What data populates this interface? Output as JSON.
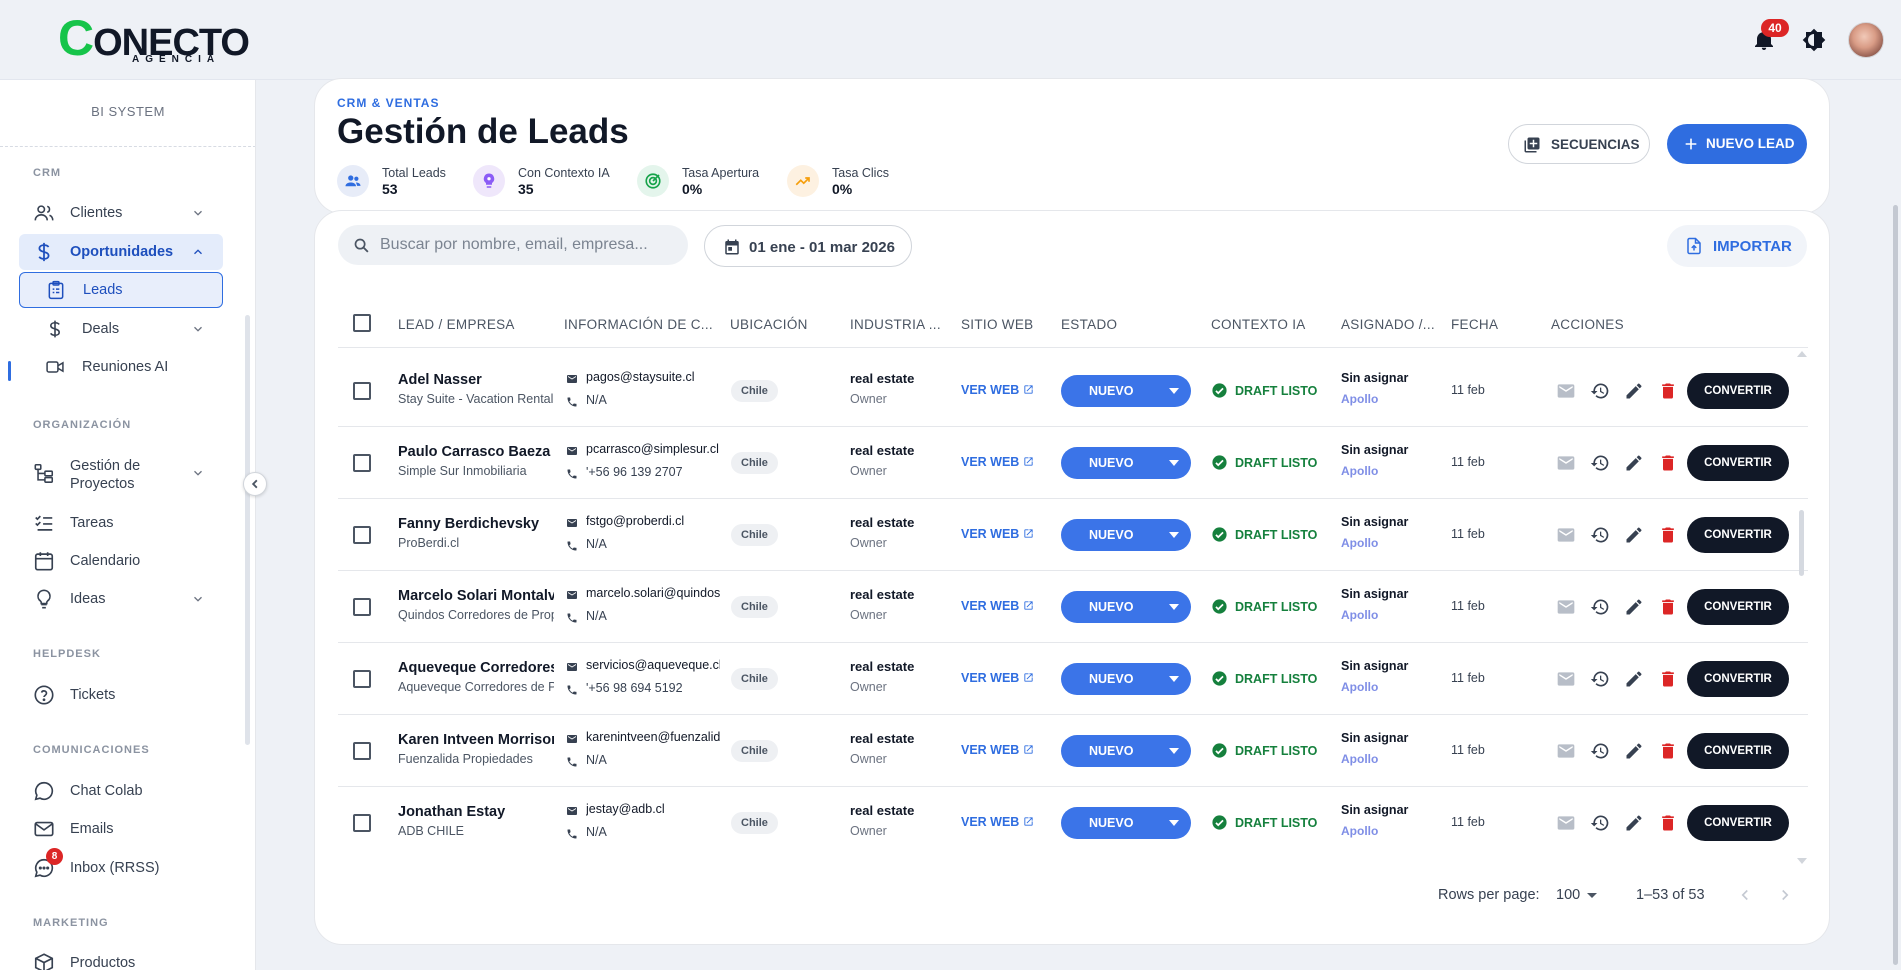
{
  "brand": {
    "logo_letter": "C",
    "logo_text": "ONECTO",
    "logo_sub": "AGENCIA"
  },
  "header": {
    "notifications": "40"
  },
  "sidebar": {
    "title": "BI SYSTEM",
    "sections": {
      "crm": "CRM",
      "org": "ORGANIZACIÓN",
      "helpdesk": "HELPDESK",
      "comms": "COMUNICACIONES",
      "marketing": "MARKETING"
    },
    "items": {
      "clientes": "Clientes",
      "oportunidades": "Oportunidades",
      "leads": "Leads",
      "deals": "Deals",
      "reuniones": "Reuniones AI",
      "proyectos_1": "Gestión de",
      "proyectos_2": "Proyectos",
      "tareas": "Tareas",
      "calendario": "Calendario",
      "ideas": "Ideas",
      "tickets": "Tickets",
      "chat": "Chat Colab",
      "emails": "Emails",
      "inbox": "Inbox (RRSS)",
      "productos": "Productos"
    },
    "inbox_badge": "8"
  },
  "page": {
    "crumb": "CRM & VENTAS",
    "title": "Gestión de Leads",
    "stats": [
      {
        "label": "Total Leads",
        "value": "53"
      },
      {
        "label": "Con Contexto IA",
        "value": "35"
      },
      {
        "label": "Tasa Apertura",
        "value": "0%"
      },
      {
        "label": "Tasa Clics",
        "value": "0%"
      }
    ],
    "btn_sequences": "SECUENCIAS",
    "btn_new": "NUEVO LEAD",
    "btn_import": "IMPORTAR",
    "search_placeholder": "Buscar por nombre, email, empresa...",
    "date_range": "01 ene - 01 mar 2026"
  },
  "table": {
    "columns": [
      "LEAD / EMPRESA",
      "INFORMACIÓN DE C...",
      "UBICACIÓN",
      "INDUSTRIA ...",
      "SITIO WEB",
      "ESTADO",
      "CONTEXTO IA",
      "ASIGNADO /...",
      "FECHA",
      "ACCIONES"
    ],
    "rows": [
      {
        "name": "Adel Nasser",
        "company": "Stay Suite - Vacation Rental",
        "email": "pagos@staysuite.cl",
        "phone": "N/A",
        "location": "Chile",
        "industry": "real estate",
        "role": "Owner",
        "web": "VER WEB",
        "status": "NUEVO",
        "context": "DRAFT LISTO",
        "assigned": "Sin asignar",
        "source": "Apollo",
        "date": "11 feb",
        "action": "CONVERTIR"
      },
      {
        "name": "Paulo Carrasco Baeza",
        "company": "Simple Sur Inmobiliaria",
        "email": "pcarrasco@simplesur.cl",
        "phone": "'+56 96 139 2707",
        "location": "Chile",
        "industry": "real estate",
        "role": "Owner",
        "web": "VER WEB",
        "status": "NUEVO",
        "context": "DRAFT LISTO",
        "assigned": "Sin asignar",
        "source": "Apollo",
        "date": "11 feb",
        "action": "CONVERTIR"
      },
      {
        "name": "Fanny Berdichevsky",
        "company": "ProBerdi.cl",
        "email": "fstgo@proberdi.cl",
        "phone": "N/A",
        "location": "Chile",
        "industry": "real estate",
        "role": "Owner",
        "web": "VER WEB",
        "status": "NUEVO",
        "context": "DRAFT LISTO",
        "assigned": "Sin asignar",
        "source": "Apollo",
        "date": "11 feb",
        "action": "CONVERTIR"
      },
      {
        "name": "Marcelo Solari Montalva",
        "company": "Quindos Corredores de Propiedades",
        "email": "marcelo.solari@quindos.cl",
        "phone": "N/A",
        "location": "Chile",
        "industry": "real estate",
        "role": "Owner",
        "web": "VER WEB",
        "status": "NUEVO",
        "context": "DRAFT LISTO",
        "assigned": "Sin asignar",
        "source": "Apollo",
        "date": "11 feb",
        "action": "CONVERTIR"
      },
      {
        "name": "Aqueveque Corredores",
        "company": "Aqueveque Corredores de Propiedades",
        "email": "servicios@aqueveque.cl",
        "phone": "'+56 98 694 5192",
        "location": "Chile",
        "industry": "real estate",
        "role": "Owner",
        "web": "VER WEB",
        "status": "NUEVO",
        "context": "DRAFT LISTO",
        "assigned": "Sin asignar",
        "source": "Apollo",
        "date": "11 feb",
        "action": "CONVERTIR"
      },
      {
        "name": "Karen Intveen Morrison",
        "company": "Fuenzalida Propiedades",
        "email": "karenintveen@fuenzalida.com",
        "phone": "N/A",
        "location": "Chile",
        "industry": "real estate",
        "role": "Owner",
        "web": "VER WEB",
        "status": "NUEVO",
        "context": "DRAFT LISTO",
        "assigned": "Sin asignar",
        "source": "Apollo",
        "date": "11 feb",
        "action": "CONVERTIR"
      },
      {
        "name": "Jonathan Estay",
        "company": "ADB CHILE",
        "email": "jestay@adb.cl",
        "phone": "N/A",
        "location": "Chile",
        "industry": "real estate",
        "role": "Owner",
        "web": "VER WEB",
        "status": "NUEVO",
        "context": "DRAFT LISTO",
        "assigned": "Sin asignar",
        "source": "Apollo",
        "date": "11 feb",
        "action": "CONVERTIR"
      }
    ],
    "footer": {
      "rows_label": "Rows per page:",
      "rows_value": "100",
      "range": "1–53 of 53"
    }
  },
  "colors": {
    "accent": "#2f6de0",
    "success": "#15803d",
    "danger": "#dc2626",
    "dark": "#111827"
  }
}
